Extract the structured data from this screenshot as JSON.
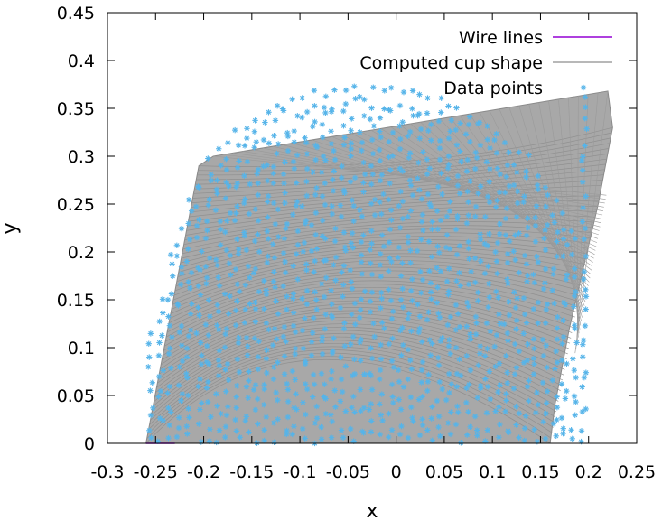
{
  "chart_data": {
    "type": "scatter",
    "xlabel": "x",
    "ylabel": "y",
    "xlim": [
      -0.3,
      0.25
    ],
    "ylim": [
      0,
      0.45
    ],
    "xticks": [
      "-0.3",
      "-0.25",
      "-0.2",
      "-0.15",
      "-0.1",
      "-0.05",
      "0",
      "0.05",
      "0.1",
      "0.15",
      "0.2",
      "0.25"
    ],
    "yticks": [
      "0",
      "0.05",
      "0.1",
      "0.15",
      "0.2",
      "0.25",
      "0.3",
      "0.35",
      "0.4",
      "0.45"
    ],
    "grid": false,
    "legend_position": "top-right",
    "series": [
      {
        "name": "Wire lines",
        "style": "line",
        "color": "#9400d3",
        "x": [
          -0.26,
          -0.23
        ],
        "y": [
          0.0,
          0.0
        ]
      },
      {
        "name": "Computed cup shape",
        "style": "line-family",
        "color": "#a0a0a0",
        "outline": {
          "x": [
            -0.26,
            -0.205,
            -0.19,
            0.22,
            0.225,
            0.21,
            0.18,
            0.165,
            0.16
          ],
          "y": [
            0.0,
            0.29,
            0.3,
            0.368,
            0.33,
            0.25,
            0.12,
            0.04,
            0.0
          ]
        }
      },
      {
        "name": "Data points",
        "style": "points",
        "marker": "asterisk",
        "color": "#56b4e9",
        "columns_x": [
          -0.255,
          -0.245,
          -0.235,
          -0.225,
          -0.215,
          -0.205,
          -0.195,
          -0.185,
          -0.175,
          -0.165,
          -0.155,
          -0.145,
          -0.135,
          -0.125,
          -0.115,
          -0.105,
          -0.095,
          -0.085,
          -0.075,
          -0.065,
          -0.055,
          -0.045,
          -0.035,
          -0.025,
          -0.015,
          -0.005,
          0.005,
          0.015,
          0.025,
          0.035,
          0.045,
          0.055,
          0.065,
          0.075,
          0.085,
          0.095,
          0.105,
          0.115,
          0.125,
          0.135,
          0.145,
          0.155,
          0.165,
          0.175,
          0.185,
          0.195
        ],
        "columns_ymax": [
          0.12,
          0.16,
          0.2,
          0.23,
          0.26,
          0.28,
          0.3,
          0.31,
          0.32,
          0.33,
          0.34,
          0.345,
          0.35,
          0.355,
          0.36,
          0.36,
          0.365,
          0.37,
          0.37,
          0.372,
          0.372,
          0.373,
          0.373,
          0.373,
          0.372,
          0.372,
          0.37,
          0.37,
          0.368,
          0.366,
          0.363,
          0.36,
          0.356,
          0.352,
          0.347,
          0.34,
          0.333,
          0.325,
          0.315,
          0.303,
          0.29,
          0.275,
          0.26,
          0.245,
          0.23,
          0.37
        ],
        "columns_ymin": [
          0.0,
          0.0,
          0.0,
          0.0,
          0.0,
          0.0,
          0.0,
          0.0,
          0.0,
          0.0,
          0.0,
          0.0,
          0.0,
          0.0,
          0.0,
          0.0,
          0.0,
          0.0,
          0.0,
          0.0,
          0.0,
          0.0,
          0.0,
          0.0,
          0.0,
          0.0,
          0.0,
          0.0,
          0.0,
          0.0,
          0.0,
          0.0,
          0.0,
          0.0,
          0.0,
          0.0,
          0.0,
          0.0,
          0.0,
          0.0,
          0.0,
          0.0,
          0.0,
          0.0,
          0.0,
          0.0
        ]
      }
    ]
  }
}
